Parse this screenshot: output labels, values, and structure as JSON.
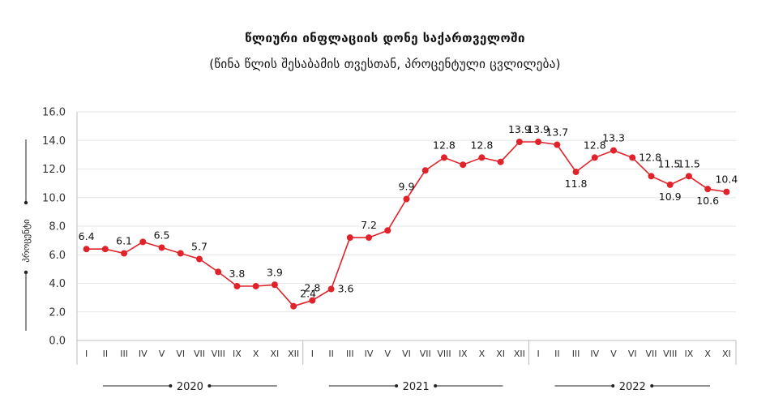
{
  "chart_data": {
    "type": "line",
    "title": "წლიური ინფლაციის დონე  საქართველოში",
    "subtitle": "(წინა წლის შესაბამის თვესთან, პროცენტული ცვლილება)",
    "ylabel": "პროცენტი",
    "ylim": [
      0,
      16
    ],
    "yticks": [
      "0.0",
      "2.0",
      "4.0",
      "6.0",
      "8.0",
      "10.0",
      "12.0",
      "14.0",
      "16.0"
    ],
    "grid": true,
    "color": "#e0232a",
    "years": [
      "2020",
      "2021",
      "2022"
    ],
    "categories": [
      "I",
      "II",
      "III",
      "IV",
      "V",
      "VI",
      "VII",
      "VIII",
      "IX",
      "X",
      "XI",
      "XII",
      "I",
      "II",
      "III",
      "IV",
      "V",
      "VI",
      "VII",
      "VIII",
      "IX",
      "X",
      "XI",
      "XII",
      "I",
      "II",
      "III",
      "IV",
      "V",
      "VI",
      "VII",
      "VIII",
      "IX",
      "X",
      "XI"
    ],
    "values": [
      6.4,
      6.4,
      6.1,
      6.9,
      6.5,
      6.1,
      5.7,
      4.8,
      3.8,
      3.8,
      3.9,
      2.4,
      2.8,
      3.6,
      7.2,
      7.2,
      7.7,
      9.9,
      11.9,
      12.8,
      12.3,
      12.8,
      12.5,
      13.9,
      13.9,
      13.7,
      11.8,
      12.8,
      13.3,
      12.8,
      11.5,
      10.9,
      11.5,
      10.6,
      10.4
    ],
    "data_labels": [
      {
        "index": 0,
        "text": "6.4",
        "pos": "above"
      },
      {
        "index": 2,
        "text": "6.1",
        "pos": "above"
      },
      {
        "index": 4,
        "text": "6.5",
        "pos": "above"
      },
      {
        "index": 6,
        "text": "5.7",
        "pos": "above"
      },
      {
        "index": 8,
        "text": "3.8",
        "pos": "above"
      },
      {
        "index": 10,
        "text": "3.9",
        "pos": "above"
      },
      {
        "index": 11,
        "text": "2.4",
        "pos": "above-right"
      },
      {
        "index": 12,
        "text": "2.8",
        "pos": "above"
      },
      {
        "index": 13,
        "text": "3.6",
        "pos": "right"
      },
      {
        "index": 15,
        "text": "7.2",
        "pos": "above"
      },
      {
        "index": 17,
        "text": "9.9",
        "pos": "above"
      },
      {
        "index": 19,
        "text": "12.8",
        "pos": "above"
      },
      {
        "index": 21,
        "text": "12.8",
        "pos": "above"
      },
      {
        "index": 23,
        "text": "13.9",
        "pos": "above"
      },
      {
        "index": 24,
        "text": "13.9",
        "pos": "above"
      },
      {
        "index": 25,
        "text": "13.7",
        "pos": "above"
      },
      {
        "index": 26,
        "text": "11.8",
        "pos": "below"
      },
      {
        "index": 27,
        "text": "12.8",
        "pos": "above"
      },
      {
        "index": 28,
        "text": "13.3",
        "pos": "above"
      },
      {
        "index": 29,
        "text": "12.8",
        "pos": "right"
      },
      {
        "index": 30,
        "text": "11.5",
        "pos": "above-right"
      },
      {
        "index": 31,
        "text": "10.9",
        "pos": "below"
      },
      {
        "index": 32,
        "text": "11.5",
        "pos": "above"
      },
      {
        "index": 33,
        "text": "10.6",
        "pos": "below"
      },
      {
        "index": 34,
        "text": "10.4",
        "pos": "above"
      }
    ]
  }
}
